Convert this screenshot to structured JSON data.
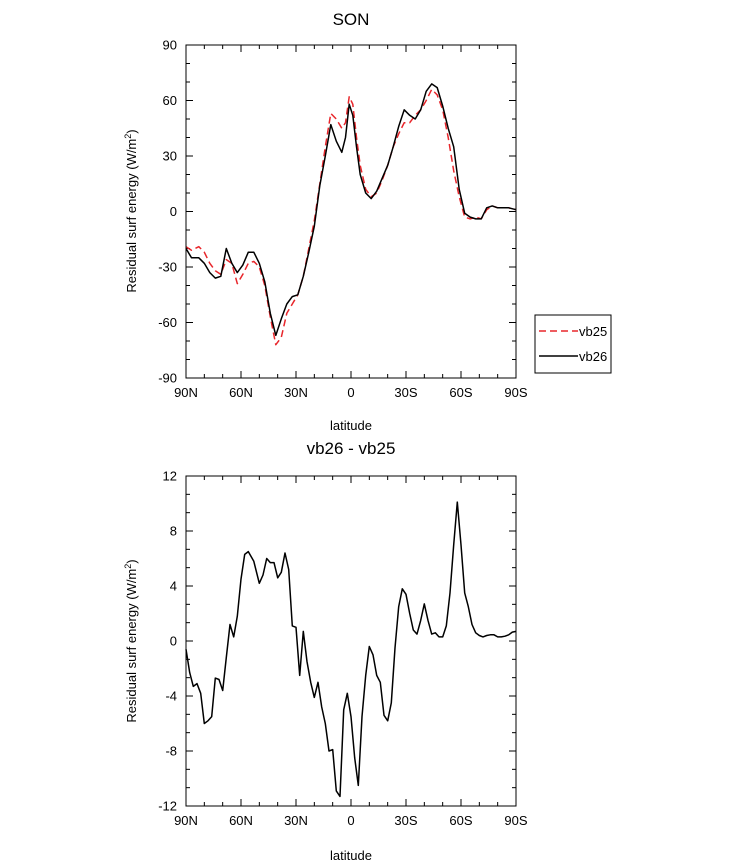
{
  "chart_data": [
    {
      "type": "line",
      "title": "SON",
      "xlabel": "latitude",
      "ylabel": "Residual surf energy (W/m²)",
      "xlim": [
        90,
        -90
      ],
      "ylim": [
        -90,
        90
      ],
      "xticks": [
        90,
        60,
        30,
        0,
        -30,
        -60,
        -90
      ],
      "xtick_labels": [
        "90N",
        "60N",
        "30N",
        "0",
        "30S",
        "60S",
        "90S"
      ],
      "yticks": [
        -90,
        -60,
        -30,
        0,
        30,
        60,
        90
      ],
      "ytick_labels": [
        "-90",
        "-60",
        "-30",
        "0",
        "30",
        "60",
        "90"
      ],
      "legend": [
        "vb25",
        "vb26"
      ],
      "series": [
        {
          "name": "vb25",
          "color": "#e8262b",
          "dash": "dashed",
          "x": [
            90,
            87,
            83,
            80,
            77,
            74,
            71,
            68,
            65,
            62,
            59,
            56,
            53,
            50,
            47,
            44,
            41,
            38,
            35,
            32,
            29,
            26,
            23,
            20,
            17,
            14,
            11,
            8,
            5,
            3,
            1,
            -1,
            -3,
            -5,
            -8,
            -11,
            -14,
            -17,
            -20,
            -23,
            -26,
            -29,
            -32,
            -35,
            -38,
            -41,
            -44,
            -47,
            -50,
            -53,
            -56,
            -59,
            -62,
            -65,
            -68,
            -71,
            -74,
            -77,
            -80,
            -83,
            -86,
            -90
          ],
          "y": [
            -19,
            -21,
            -19,
            -22,
            -28,
            -32,
            -34,
            -26,
            -28,
            -39,
            -34,
            -28,
            -27,
            -30,
            -40,
            -57,
            -72,
            -68,
            -55,
            -50,
            -45,
            -35,
            -20,
            -5,
            15,
            35,
            53,
            50,
            45,
            48,
            62,
            58,
            40,
            25,
            12,
            8,
            10,
            17,
            25,
            35,
            42,
            48,
            48,
            52,
            55,
            60,
            66,
            63,
            55,
            40,
            22,
            8,
            -3,
            -4,
            -3,
            -4,
            1,
            3,
            2,
            2,
            2,
            1
          ]
        },
        {
          "name": "vb26",
          "color": "#000000",
          "dash": "solid",
          "x": [
            90,
            87,
            83,
            80,
            77,
            74,
            71,
            68,
            65,
            62,
            59,
            56,
            53,
            50,
            47,
            44,
            41,
            38,
            35,
            32,
            29,
            26,
            23,
            20,
            17,
            14,
            11,
            8,
            5,
            3,
            1,
            -1,
            -3,
            -5,
            -8,
            -11,
            -14,
            -17,
            -20,
            -23,
            -26,
            -29,
            -32,
            -35,
            -38,
            -41,
            -44,
            -47,
            -50,
            -53,
            -56,
            -59,
            -62,
            -65,
            -68,
            -71,
            -74,
            -77,
            -80,
            -83,
            -86,
            -90
          ],
          "y": [
            -20,
            -25,
            -25,
            -28,
            -33,
            -36,
            -35,
            -20,
            -28,
            -33,
            -29,
            -22,
            -22,
            -28,
            -38,
            -55,
            -67,
            -58,
            -50,
            -46,
            -45,
            -35,
            -22,
            -8,
            14,
            30,
            47,
            38,
            32,
            40,
            58,
            52,
            35,
            20,
            10,
            7,
            11,
            18,
            25,
            35,
            46,
            55,
            52,
            50,
            55,
            65,
            69,
            67,
            57,
            45,
            35,
            12,
            -1,
            -3,
            -4,
            -4,
            2,
            3,
            2,
            2,
            2,
            1
          ]
        }
      ]
    },
    {
      "type": "line",
      "title": "vb26 - vb25",
      "xlabel": "latitude",
      "ylabel": "Residual surf energy (W/m²)",
      "xlim": [
        90,
        -90
      ],
      "ylim": [
        -12,
        12
      ],
      "xticks": [
        90,
        60,
        30,
        0,
        -30,
        -60,
        -90
      ],
      "xtick_labels": [
        "90N",
        "60N",
        "30N",
        "0",
        "30S",
        "60S",
        "90S"
      ],
      "yticks": [
        -12,
        -8,
        -4,
        0,
        4,
        8,
        12
      ],
      "ytick_labels": [
        "-12",
        "-8",
        "-4",
        "0",
        "4",
        "8",
        "12"
      ],
      "series": [
        {
          "name": "vb26 - vb25",
          "color": "#000000",
          "dash": "solid",
          "x": [
            90,
            88,
            86,
            84,
            82,
            80,
            78,
            76,
            74,
            72,
            70,
            68,
            66,
            64,
            62,
            60,
            58,
            56,
            53,
            50,
            48,
            46,
            44,
            42,
            40,
            38,
            36,
            34,
            32,
            30,
            28,
            26,
            24,
            22,
            20,
            18,
            16,
            14,
            12,
            10,
            8,
            6,
            4,
            2,
            0,
            -2,
            -4,
            -6,
            -8,
            -10,
            -12,
            -14,
            -16,
            -18,
            -20,
            -22,
            -24,
            -26,
            -28,
            -30,
            -32,
            -34,
            -36,
            -38,
            -40,
            -42,
            -44,
            -46,
            -48,
            -50,
            -52,
            -54,
            -56,
            -58,
            -60,
            -62,
            -64,
            -66,
            -68,
            -70,
            -72,
            -74,
            -76,
            -78,
            -80,
            -82,
            -84,
            -86,
            -88,
            -90
          ],
          "y": [
            -0.6,
            -2.3,
            -3.3,
            -3.1,
            -3.8,
            -6.0,
            -5.8,
            -5.5,
            -2.7,
            -2.8,
            -3.6,
            -1.2,
            1.2,
            0.3,
            1.8,
            4.5,
            6.3,
            6.5,
            5.8,
            4.2,
            4.8,
            6.0,
            5.7,
            5.7,
            4.6,
            5.0,
            6.4,
            5.2,
            1.1,
            1.0,
            -2.5,
            0.7,
            -1.5,
            -3.0,
            -4.1,
            -3.0,
            -4.8,
            -6.0,
            -8.0,
            -7.9,
            -10.9,
            -11.3,
            -5.0,
            -3.8,
            -5.5,
            -8.5,
            -10.5,
            -5.5,
            -2.5,
            -0.4,
            -1.0,
            -2.5,
            -3.0,
            -5.4,
            -5.8,
            -4.5,
            -0.5,
            2.5,
            3.8,
            3.4,
            2.0,
            0.8,
            0.5,
            1.5,
            2.7,
            1.5,
            0.5,
            0.6,
            0.3,
            0.3,
            1.1,
            3.5,
            7.0,
            10.1,
            7.0,
            3.5,
            2.5,
            1.2,
            0.6,
            0.4,
            0.3,
            0.4,
            0.45,
            0.45,
            0.3,
            0.3,
            0.35,
            0.45,
            0.65,
            0.7
          ]
        }
      ]
    }
  ]
}
